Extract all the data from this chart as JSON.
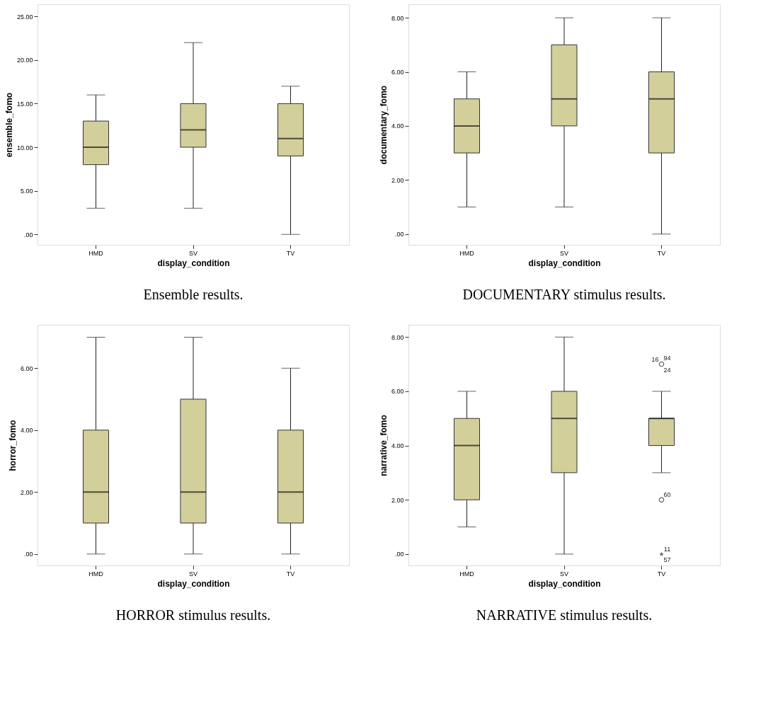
{
  "chart_data": [
    {
      "type": "box",
      "categories": [
        "HMD",
        "SV",
        "TV"
      ],
      "xlabel": "display_condition",
      "ylabel": "ensemble_fomo",
      "ylim": [
        -1.2,
        26.4
      ],
      "yticks": [
        {
          "value": 0,
          "label": ".00"
        },
        {
          "value": 5,
          "label": "5.00"
        },
        {
          "value": 10,
          "label": "10.00"
        },
        {
          "value": 15,
          "label": "15.00"
        },
        {
          "value": 20,
          "label": "20.00"
        },
        {
          "value": 25,
          "label": "25.00"
        }
      ],
      "grid": false,
      "annotations": [
        "Ensemble results."
      ],
      "series": [
        {
          "color": "#d3cf9a",
          "boxes": [
            {
              "low": 3,
              "q1": 8,
              "median": 10,
              "q3": 13,
              "high": 16
            },
            {
              "low": 3,
              "q1": 10,
              "median": 12,
              "q3": 15,
              "high": 22
            },
            {
              "low": 0,
              "q1": 9,
              "median": 11,
              "q3": 15,
              "high": 17
            }
          ]
        }
      ]
    },
    {
      "type": "box",
      "categories": [
        "HMD",
        "SV",
        "TV"
      ],
      "xlabel": "display_condition",
      "ylabel": "documentary_fomo",
      "ylim": [
        -0.4,
        8.5
      ],
      "yticks": [
        {
          "value": 0,
          "label": ".00"
        },
        {
          "value": 2,
          "label": "2.00"
        },
        {
          "value": 4,
          "label": "4.00"
        },
        {
          "value": 6,
          "label": "6.00"
        },
        {
          "value": 8,
          "label": "8.00"
        }
      ],
      "grid": false,
      "annotations": [
        "DOCUMENTARY stimulus results."
      ],
      "series": [
        {
          "color": "#d3cf9a",
          "boxes": [
            {
              "low": 1,
              "q1": 3,
              "median": 4,
              "q3": 5,
              "high": 6
            },
            {
              "low": 1,
              "q1": 4,
              "median": 5,
              "q3": 7,
              "high": 8
            },
            {
              "low": 0,
              "q1": 3,
              "median": 5,
              "q3": 6,
              "high": 8
            }
          ]
        }
      ]
    },
    {
      "type": "box",
      "categories": [
        "HMD",
        "SV",
        "TV"
      ],
      "xlabel": "display_condition",
      "ylabel": "horror_fomo",
      "ylim": [
        -0.37,
        7.4
      ],
      "yticks": [
        {
          "value": 0,
          "label": ".00"
        },
        {
          "value": 2,
          "label": "2.00"
        },
        {
          "value": 4,
          "label": "4.00"
        },
        {
          "value": 6,
          "label": "6.00"
        }
      ],
      "grid": false,
      "annotations": [
        "HORROR stimulus results."
      ],
      "series": [
        {
          "color": "#d3cf9a",
          "boxes": [
            {
              "low": 0,
              "q1": 1,
              "median": 2,
              "q3": 4,
              "high": 7
            },
            {
              "low": 0,
              "q1": 1,
              "median": 2,
              "q3": 5,
              "high": 7
            },
            {
              "low": 0,
              "q1": 1,
              "median": 2,
              "q3": 4,
              "high": 6
            }
          ]
        }
      ]
    },
    {
      "type": "box",
      "categories": [
        "HMD",
        "SV",
        "TV"
      ],
      "xlabel": "display_condition",
      "ylabel": "narrative_fomo",
      "ylim": [
        -0.42,
        8.45
      ],
      "yticks": [
        {
          "value": 0,
          "label": ".00"
        },
        {
          "value": 2,
          "label": "2.00"
        },
        {
          "value": 4,
          "label": "4.00"
        },
        {
          "value": 6,
          "label": "6.00"
        },
        {
          "value": 8,
          "label": "8.00"
        }
      ],
      "grid": false,
      "annotations": [
        "NARRATIVE stimulus results.",
        {
          "text": "16",
          "x": "TV",
          "y": 7
        },
        {
          "text": "94",
          "x": "TV",
          "y": 7
        },
        {
          "text": "24",
          "x": "TV",
          "y": 7
        },
        {
          "text": "60",
          "x": "TV",
          "y": 2
        },
        {
          "text": "11",
          "x": "TV",
          "y": 0
        },
        {
          "text": "57",
          "x": "TV",
          "y": 0
        }
      ],
      "series": [
        {
          "color": "#d3cf9a",
          "boxes": [
            {
              "low": 1,
              "q1": 2,
              "median": 4,
              "q3": 5,
              "high": 6
            },
            {
              "low": 0,
              "q1": 3,
              "median": 5,
              "q3": 6,
              "high": 8
            },
            {
              "low": 3,
              "q1": 4,
              "median": 5,
              "q3": 5,
              "high": 6
            }
          ]
        },
        {
          "type": "scatter",
          "color": "#222222",
          "marker": "circle",
          "x": [
            "TV",
            "TV"
          ],
          "values": [
            7,
            2
          ]
        },
        {
          "type": "scatter",
          "color": "#222222",
          "marker": "star",
          "x": [
            "TV"
          ],
          "values": [
            0
          ]
        }
      ]
    }
  ]
}
